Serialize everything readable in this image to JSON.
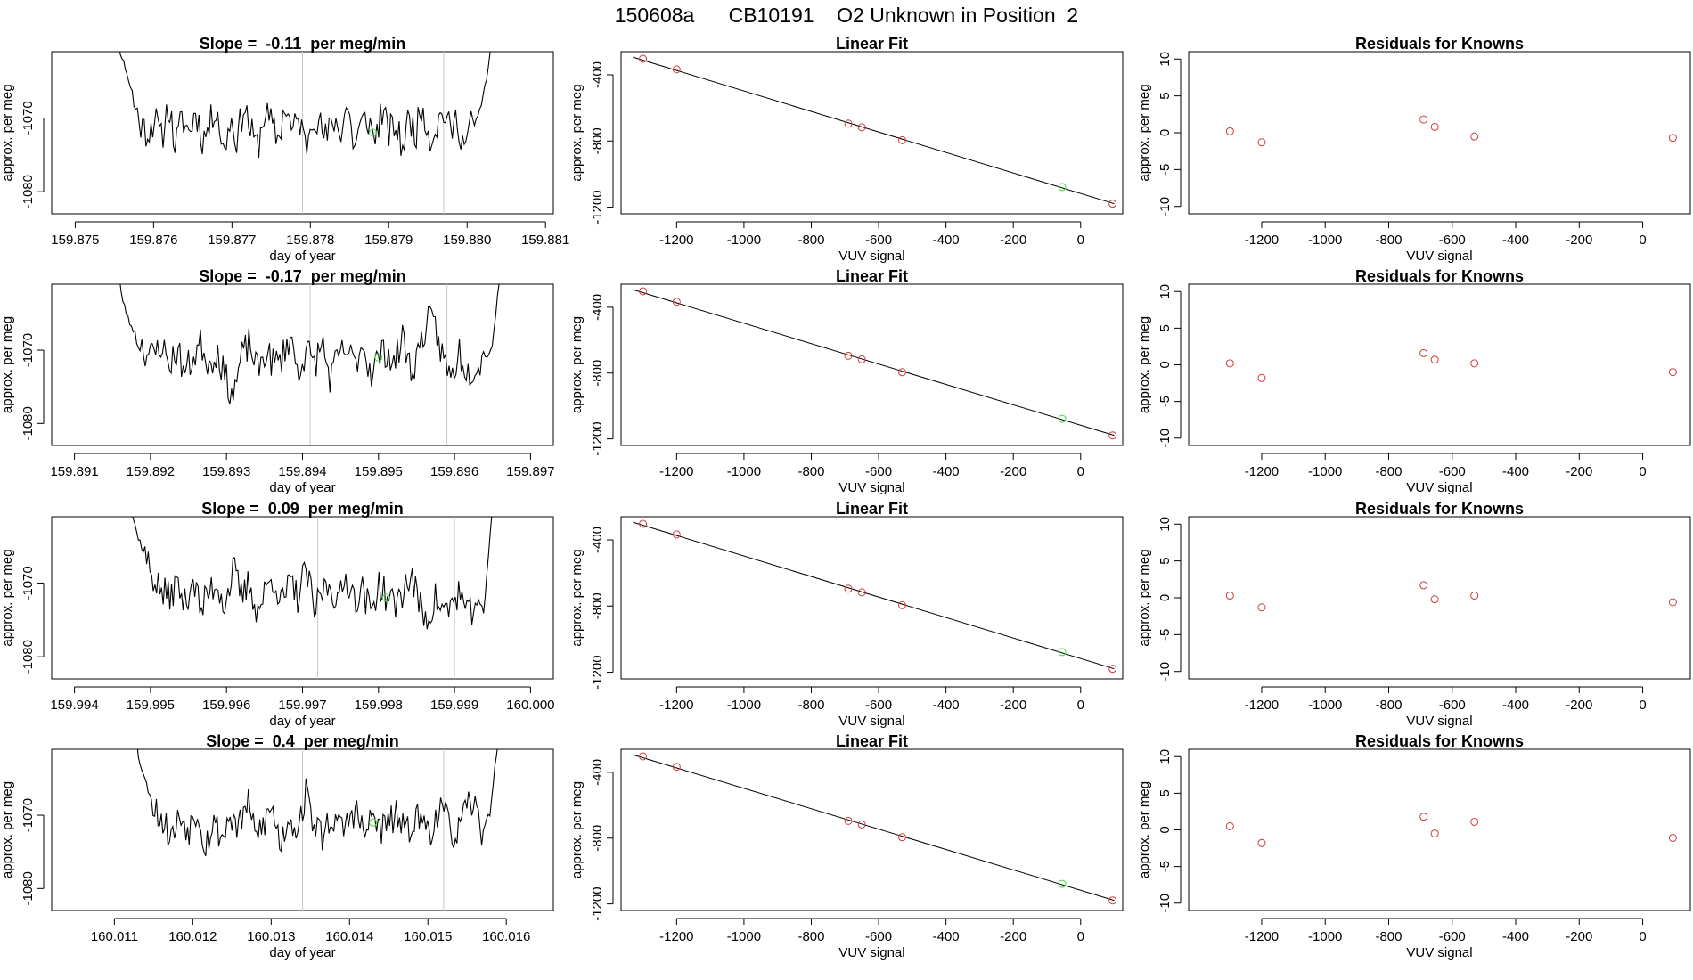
{
  "title": "150608a      CB10191    O2 Unknown in Position  2",
  "colors": {
    "line": "#000000",
    "known": "#cd3b3b",
    "unknown": "#44dd44",
    "vline": "#c8c8c8"
  },
  "chart_data": [
    {
      "type": "line",
      "panel": "ts1",
      "title": "Slope =  -0.11  per meg/min",
      "xlabel": "day of year",
      "ylabel": "approx. per meg",
      "xlim": [
        159.8747,
        159.8811
      ],
      "ylim": [
        -1083,
        -1061
      ],
      "xticks": [
        "159.875",
        "159.876",
        "159.877",
        "159.878",
        "159.879",
        "159.880",
        "159.881"
      ],
      "yticks": [
        "-1080",
        "-1070"
      ],
      "series": {
        "x_start": 159.8754,
        "x_end": 159.8804,
        "levels": [
          -1050,
          -1056,
          -1061,
          -1064,
          -1068,
          -1071,
          -1072,
          -1070,
          -1073,
          -1068,
          -1074,
          -1070,
          -1072,
          -1069,
          -1073,
          -1071,
          -1068,
          -1075,
          -1070,
          -1073,
          -1068,
          -1072,
          -1074,
          -1069,
          -1071,
          -1073,
          -1068,
          -1072,
          -1070,
          -1074,
          -1069,
          -1071,
          -1073,
          -1070,
          -1072,
          -1068,
          -1074,
          -1071,
          -1070,
          -1073,
          -1069,
          -1072,
          -1071,
          -1074,
          -1070,
          -1072,
          -1068,
          -1073,
          -1071,
          -1069,
          -1072,
          -1070,
          -1074,
          -1071,
          -1070,
          -1066,
          -1060,
          -1050
        ],
        "noise": 2.3,
        "seed": 11
      },
      "vlines": [
        159.8779,
        159.8797
      ],
      "unknown_point": {
        "x": 159.8788,
        "y": -1072
      }
    },
    {
      "type": "scatter",
      "panel": "fit1",
      "title": "Linear Fit",
      "xlabel": "VUV signal",
      "ylabel": "approx. per meg",
      "xlim": [
        -1365,
        125
      ],
      "ylim": [
        -1240,
        -260
      ],
      "xticks": [
        -1200,
        -1000,
        -800,
        -600,
        -400,
        -200,
        0
      ],
      "yticks": [
        -1200,
        -800,
        -400
      ],
      "fit_line": {
        "x": [
          -1330,
          100
        ],
        "y": [
          -293,
          -1179
        ]
      },
      "knowns": {
        "x": [
          -1300,
          -1200,
          -690,
          -650,
          -530,
          95
        ],
        "y": [
          -303,
          -367,
          -695,
          -717,
          -795,
          -1179
        ]
      },
      "unknown": {
        "x": -55,
        "y": -1078
      }
    },
    {
      "type": "scatter",
      "panel": "res1",
      "title": "Residuals for Knowns",
      "xlabel": "VUV signal",
      "ylabel": "approx. per meg",
      "xlim": [
        -1430,
        150
      ],
      "ylim": [
        -11,
        11
      ],
      "xticks": [
        -1200,
        -1000,
        -800,
        -600,
        -400,
        -200,
        0
      ],
      "yticks": [
        -10,
        -5,
        0,
        5,
        10
      ],
      "points": {
        "x": [
          -1300,
          -1200,
          -690,
          -655,
          -530,
          95
        ],
        "y": [
          0.2,
          -1.3,
          1.8,
          0.8,
          -0.5,
          -0.7
        ]
      }
    },
    {
      "type": "line",
      "panel": "ts2",
      "title": "Slope =  -0.17  per meg/min",
      "xlabel": "day of year",
      "ylabel": "approx. per meg",
      "xlim": [
        159.8907,
        159.8973
      ],
      "ylim": [
        -1083,
        -1061
      ],
      "xticks": [
        "159.891",
        "159.892",
        "159.893",
        "159.894",
        "159.895",
        "159.896",
        "159.897"
      ],
      "yticks": [
        "-1080",
        "-1070"
      ],
      "series": {
        "x_start": 159.8915,
        "x_end": 159.8967,
        "levels": [
          -1050,
          -1062,
          -1066,
          -1068,
          -1070,
          -1071,
          -1069,
          -1072,
          -1070,
          -1073,
          -1071,
          -1069,
          -1072,
          -1070,
          -1074,
          -1076,
          -1071,
          -1069,
          -1073,
          -1070,
          -1072,
          -1071,
          -1068,
          -1073,
          -1070,
          -1072,
          -1069,
          -1074,
          -1071,
          -1070,
          -1072,
          -1069,
          -1073,
          -1071,
          -1070,
          -1072,
          -1068,
          -1073,
          -1070,
          -1066,
          -1067,
          -1071,
          -1074,
          -1070,
          -1073,
          -1072,
          -1071,
          -1070,
          -1060,
          -1050
        ],
        "noise": 2.3,
        "seed": 23
      },
      "vlines": [
        159.8941,
        159.8959
      ],
      "unknown_point": {
        "x": 159.895,
        "y": -1071
      }
    },
    {
      "type": "scatter",
      "panel": "fit2",
      "title": "Linear Fit",
      "xlabel": "VUV signal",
      "ylabel": "approx. per meg",
      "xlim": [
        -1365,
        125
      ],
      "ylim": [
        -1240,
        -260
      ],
      "xticks": [
        -1200,
        -1000,
        -800,
        -600,
        -400,
        -200,
        0
      ],
      "yticks": [
        -1200,
        -800,
        -400
      ],
      "fit_line": {
        "x": [
          -1330,
          100
        ],
        "y": [
          -293,
          -1179
        ]
      },
      "knowns": {
        "x": [
          -1300,
          -1200,
          -690,
          -650,
          -530,
          95
        ],
        "y": [
          -303,
          -367,
          -695,
          -717,
          -795,
          -1179
        ]
      },
      "unknown": {
        "x": -55,
        "y": -1078
      }
    },
    {
      "type": "scatter",
      "panel": "res2",
      "title": "Residuals for Knowns",
      "xlabel": "VUV signal",
      "ylabel": "approx. per meg",
      "xlim": [
        -1430,
        150
      ],
      "ylim": [
        -11,
        11
      ],
      "xticks": [
        -1200,
        -1000,
        -800,
        -600,
        -400,
        -200,
        0
      ],
      "yticks": [
        -10,
        -5,
        0,
        5,
        10
      ],
      "points": {
        "x": [
          -1300,
          -1200,
          -690,
          -655,
          -530,
          95
        ],
        "y": [
          0.2,
          -1.8,
          1.6,
          0.7,
          0.2,
          -1.0
        ]
      }
    },
    {
      "type": "line",
      "panel": "ts3",
      "title": "Slope =  0.09  per meg/min",
      "xlabel": "day of year",
      "ylabel": "approx. per meg",
      "xlim": [
        159.9937,
        160.0003
      ],
      "ylim": [
        -1083,
        -1061
      ],
      "xticks": [
        "159.994",
        "159.995",
        "159.996",
        "159.997",
        "159.998",
        "159.999",
        "160.000"
      ],
      "yticks": [
        "-1080",
        "-1070"
      ],
      "series": {
        "x_start": 159.9946,
        "x_end": 159.9996,
        "levels": [
          -1050,
          -1058,
          -1063,
          -1066,
          -1069,
          -1071,
          -1072,
          -1070,
          -1073,
          -1069,
          -1074,
          -1071,
          -1070,
          -1073,
          -1068,
          -1072,
          -1070,
          -1074,
          -1071,
          -1069,
          -1073,
          -1070,
          -1072,
          -1068,
          -1074,
          -1071,
          -1070,
          -1073,
          -1069,
          -1072,
          -1071,
          -1074,
          -1070,
          -1072,
          -1073,
          -1071,
          -1069,
          -1073,
          -1075,
          -1072,
          -1074,
          -1073,
          -1071,
          -1075,
          -1072,
          -1074,
          -1060,
          -1050
        ],
        "noise": 2.3,
        "seed": 37
      },
      "vlines": [
        159.9972,
        159.999
      ],
      "unknown_point": {
        "x": 159.9981,
        "y": -1072
      }
    },
    {
      "type": "scatter",
      "panel": "fit3",
      "title": "Linear Fit",
      "xlabel": "VUV signal",
      "ylabel": "approx. per meg",
      "xlim": [
        -1365,
        125
      ],
      "ylim": [
        -1240,
        -260
      ],
      "xticks": [
        -1200,
        -1000,
        -800,
        -600,
        -400,
        -200,
        0
      ],
      "yticks": [
        -1200,
        -800,
        -400
      ],
      "fit_line": {
        "x": [
          -1330,
          100
        ],
        "y": [
          -293,
          -1179
        ]
      },
      "knowns": {
        "x": [
          -1300,
          -1200,
          -690,
          -650,
          -530,
          95
        ],
        "y": [
          -303,
          -367,
          -695,
          -717,
          -795,
          -1179
        ]
      },
      "unknown": {
        "x": -55,
        "y": -1078
      }
    },
    {
      "type": "scatter",
      "panel": "res3",
      "title": "Residuals for Knowns",
      "xlabel": "VUV signal",
      "ylabel": "approx. per meg",
      "xlim": [
        -1430,
        150
      ],
      "ylim": [
        -11,
        11
      ],
      "xticks": [
        -1200,
        -1000,
        -800,
        -600,
        -400,
        -200,
        0
      ],
      "yticks": [
        -10,
        -5,
        0,
        5,
        10
      ],
      "points": {
        "x": [
          -1300,
          -1200,
          -690,
          -655,
          -530,
          95
        ],
        "y": [
          0.3,
          -1.3,
          1.7,
          -0.2,
          0.3,
          -0.6
        ]
      }
    },
    {
      "type": "line",
      "panel": "ts4",
      "title": "Slope =  0.4  per meg/min",
      "xlabel": "day of year",
      "ylabel": "approx. per meg",
      "xlim": [
        160.0102,
        160.0166
      ],
      "ylim": [
        -1083,
        -1061
      ],
      "xticks": [
        "160.011",
        "160.012",
        "160.013",
        "160.014",
        "160.015",
        "160.016"
      ],
      "yticks": [
        "-1080",
        "-1070"
      ],
      "series": {
        "x_start": 160.0112,
        "x_end": 160.016,
        "levels": [
          -1050,
          -1062,
          -1066,
          -1069,
          -1071,
          -1073,
          -1070,
          -1072,
          -1069,
          -1074,
          -1071,
          -1073,
          -1070,
          -1072,
          -1068,
          -1073,
          -1071,
          -1069,
          -1074,
          -1070,
          -1072,
          -1067,
          -1071,
          -1073,
          -1070,
          -1072,
          -1071,
          -1069,
          -1073,
          -1070,
          -1072,
          -1071,
          -1070,
          -1073,
          -1070,
          -1071,
          -1072,
          -1069,
          -1071,
          -1073,
          -1070,
          -1068,
          -1072,
          -1070,
          -1060,
          -1050
        ],
        "noise": 2.3,
        "seed": 53
      },
      "vlines": [
        160.0134,
        160.0152
      ],
      "unknown_point": {
        "x": 160.0143,
        "y": -1071
      }
    },
    {
      "type": "scatter",
      "panel": "fit4",
      "title": "Linear Fit",
      "xlabel": "VUV signal",
      "ylabel": "approx. per meg",
      "xlim": [
        -1365,
        125
      ],
      "ylim": [
        -1240,
        -260
      ],
      "xticks": [
        -1200,
        -1000,
        -800,
        -600,
        -400,
        -200,
        0
      ],
      "yticks": [
        -1200,
        -800,
        -400
      ],
      "fit_line": {
        "x": [
          -1330,
          100
        ],
        "y": [
          -293,
          -1179
        ]
      },
      "knowns": {
        "x": [
          -1300,
          -1200,
          -690,
          -650,
          -530,
          95
        ],
        "y": [
          -303,
          -367,
          -695,
          -717,
          -795,
          -1179
        ]
      },
      "unknown": {
        "x": -55,
        "y": -1078
      }
    },
    {
      "type": "scatter",
      "panel": "res4",
      "title": "Residuals for Knowns",
      "xlabel": "VUV signal",
      "ylabel": "approx. per meg",
      "xlim": [
        -1430,
        150
      ],
      "ylim": [
        -11,
        11
      ],
      "xticks": [
        -1200,
        -1000,
        -800,
        -600,
        -400,
        -200,
        0
      ],
      "yticks": [
        -10,
        -5,
        0,
        5,
        10
      ],
      "points": {
        "x": [
          -1300,
          -1200,
          -690,
          -655,
          -530,
          95
        ],
        "y": [
          0.5,
          -1.8,
          1.8,
          -0.5,
          1.1,
          -1.1
        ]
      }
    }
  ]
}
